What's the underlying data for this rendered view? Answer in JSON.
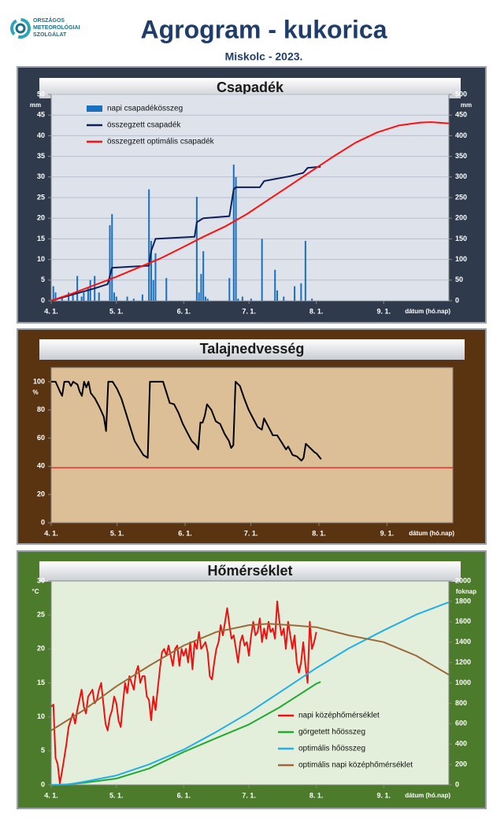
{
  "header": {
    "logo_text": [
      "ORSZÁGOS",
      "METEOROLÓGIAI",
      "SZOLGÁLAT"
    ],
    "title": "Agrogram - kukorica",
    "subtitle": "Miskolc - 2023."
  },
  "chart_data": [
    {
      "type": "combo",
      "title": "Csapadék",
      "y_unit": "mm",
      "y2_unit": "mm",
      "x_label": "dátum (hó.nap)",
      "panel_color": "#2f3b4d",
      "plot_color": "#dde2eb",
      "grid": true,
      "legend": "upper left",
      "xlim": [
        0,
        183
      ],
      "xticks": [
        {
          "value": 0,
          "label": "4. 1."
        },
        {
          "value": 30,
          "label": "5. 1."
        },
        {
          "value": 61,
          "label": "6. 1."
        },
        {
          "value": 91,
          "label": "7. 1."
        },
        {
          "value": 122,
          "label": "8. 1."
        },
        {
          "value": 153,
          "label": "9. 1."
        }
      ],
      "ylim": [
        0,
        50
      ],
      "yticks": [
        0,
        5,
        10,
        15,
        20,
        25,
        30,
        35,
        40,
        45,
        50
      ],
      "y2lim": [
        0,
        500
      ],
      "y2ticks": [
        0,
        50,
        100,
        150,
        200,
        250,
        300,
        350,
        400,
        450,
        500
      ],
      "series": [
        {
          "name": "napi csapadékösszeg",
          "type": "bar",
          "color": "#1a6fc0",
          "x": [
            1,
            2,
            5,
            8,
            10,
            12,
            14,
            15,
            17,
            18,
            20,
            22,
            27,
            28,
            29,
            30,
            35,
            38,
            42,
            45,
            46,
            47,
            48,
            53,
            67,
            68,
            69,
            70,
            71,
            72,
            82,
            84,
            85,
            86,
            88,
            92,
            97,
            103,
            104,
            107,
            112,
            115,
            117,
            120
          ],
          "values": [
            3.5,
            2,
            1,
            2,
            1.5,
            6,
            1,
            2,
            3,
            5,
            6,
            2,
            18.3,
            21,
            2,
            1,
            1,
            0.5,
            1.5,
            27,
            14.5,
            5,
            11.5,
            5.5,
            25.2,
            2,
            6.5,
            12,
            1,
            0.5,
            5.5,
            33,
            30,
            0.5,
            1,
            0.5,
            15,
            7.5,
            2.5,
            1,
            3.5,
            4.2,
            14.5,
            0.5
          ]
        },
        {
          "name": "összegzett csapadék",
          "type": "line",
          "axis": "y2",
          "color": "#0f1f5c",
          "x": [
            0,
            10,
            20,
            26,
            28,
            45,
            46,
            48,
            66,
            67,
            70,
            82,
            84,
            85,
            96,
            98,
            103,
            110,
            116,
            118,
            124
          ],
          "values": [
            0,
            15,
            30,
            40,
            80,
            85,
            120,
            150,
            155,
            190,
            200,
            205,
            270,
            275,
            275,
            290,
            295,
            302,
            310,
            322,
            325
          ]
        },
        {
          "name": "összegzett optimális  csapadék",
          "type": "line",
          "axis": "y2",
          "color": "#ff1010",
          "x": [
            0,
            10,
            20,
            30,
            40,
            50,
            60,
            70,
            80,
            90,
            100,
            110,
            120,
            130,
            140,
            150,
            160,
            170,
            175,
            183
          ],
          "values": [
            0,
            18,
            38,
            58,
            80,
            102,
            128,
            155,
            180,
            210,
            245,
            280,
            315,
            350,
            383,
            408,
            425,
            432,
            433,
            430
          ]
        }
      ]
    },
    {
      "type": "line",
      "title": "Talajnedvesség",
      "y_unit": "%",
      "x_label": "dátum (hó.nap)",
      "panel_color": "#5a3410",
      "plot_color": "#dcbf97",
      "grid": false,
      "xlim": [
        0,
        183
      ],
      "xticks": [
        {
          "value": 0,
          "label": "4. 1."
        },
        {
          "value": 30,
          "label": "5. 1."
        },
        {
          "value": 61,
          "label": "6. 1."
        },
        {
          "value": 91,
          "label": "7. 1."
        },
        {
          "value": 122,
          "label": "8. 1."
        },
        {
          "value": 153,
          "label": "9. 1."
        }
      ],
      "ylim": [
        0,
        110
      ],
      "yticks": [
        0,
        20,
        40,
        60,
        80,
        100
      ],
      "reference_line": {
        "value": 39,
        "color": "#e01818"
      },
      "series": [
        {
          "type": "line",
          "color": "#000000",
          "x": [
            0,
            2,
            4,
            5,
            6,
            8,
            9,
            10,
            12,
            13,
            14,
            15,
            16,
            17,
            18,
            20,
            22,
            24,
            25,
            26,
            28,
            30,
            32,
            34,
            36,
            38,
            40,
            42,
            44,
            45,
            50,
            51,
            53,
            54,
            56,
            58,
            60,
            62,
            64,
            66,
            67,
            68,
            69,
            70,
            71,
            73,
            75,
            77,
            79,
            81,
            82,
            83,
            84,
            86,
            88,
            90,
            92,
            94,
            96,
            97,
            99,
            101,
            103,
            105,
            107,
            108,
            110,
            112,
            114,
            115,
            116,
            118,
            120,
            121,
            123
          ],
          "values": [
            100,
            100,
            93,
            90,
            100,
            100,
            97,
            100,
            98,
            93,
            90,
            100,
            96,
            100,
            92,
            88,
            82,
            75,
            65,
            100,
            100,
            95,
            88,
            78,
            68,
            58,
            53,
            48,
            46,
            100,
            100,
            100,
            90,
            85,
            84,
            78,
            70,
            64,
            58,
            55,
            52,
            71,
            71,
            76,
            84,
            80,
            72,
            70,
            63,
            58,
            53,
            55,
            100,
            97,
            88,
            80,
            74,
            68,
            66,
            74,
            68,
            62,
            62,
            57,
            52,
            54,
            48,
            47,
            44,
            46,
            56,
            53,
            50,
            49,
            45
          ]
        }
      ]
    },
    {
      "type": "line",
      "title": "Hőmérséklet",
      "y_unit": "°C",
      "y2_unit": "foknap",
      "x_label": "dátum (hó.nap)",
      "panel_color": "#4b7b2b",
      "plot_color": "#e3efda",
      "grid": false,
      "legend": "lower right",
      "xlim": [
        0,
        183
      ],
      "xticks": [
        {
          "value": 0,
          "label": "4. 1."
        },
        {
          "value": 30,
          "label": "5. 1."
        },
        {
          "value": 61,
          "label": "6. 1."
        },
        {
          "value": 91,
          "label": "7. 1."
        },
        {
          "value": 122,
          "label": "8. 1."
        },
        {
          "value": 153,
          "label": "9. 1."
        }
      ],
      "ylim": [
        0,
        30
      ],
      "yticks": [
        0,
        5,
        10,
        15,
        20,
        25,
        30
      ],
      "y2lim": [
        0,
        2000
      ],
      "y2ticks": [
        0,
        200,
        400,
        600,
        800,
        1000,
        1200,
        1400,
        1600,
        1800,
        2000
      ],
      "series": [
        {
          "name": "napi középhőmérséklet",
          "type": "line",
          "color": "#ee1111",
          "x": [
            0,
            1,
            2,
            3,
            4,
            5,
            6,
            7,
            8,
            9,
            10,
            11,
            12,
            13,
            14,
            15,
            16,
            17,
            18,
            19,
            20,
            21,
            22,
            23,
            24,
            25,
            26,
            27,
            28,
            29,
            30,
            31,
            32,
            33,
            34,
            35,
            36,
            37,
            38,
            39,
            40,
            41,
            42,
            43,
            44,
            45,
            46,
            47,
            48,
            49,
            50,
            51,
            52,
            53,
            54,
            55,
            56,
            57,
            58,
            59,
            60,
            61,
            62,
            63,
            64,
            65,
            66,
            67,
            68,
            69,
            70,
            71,
            72,
            73,
            74,
            75,
            76,
            77,
            78,
            79,
            80,
            81,
            82,
            83,
            84,
            85,
            86,
            87,
            88,
            89,
            90,
            91,
            92,
            93,
            94,
            95,
            96,
            97,
            98,
            99,
            100,
            101,
            102,
            103,
            104,
            105,
            106,
            107,
            108,
            109,
            110,
            111,
            112,
            113,
            114,
            115,
            116,
            117,
            118,
            119,
            120,
            121,
            122
          ],
          "values": [
            11.5,
            11.8,
            4,
            3,
            0.2,
            2,
            4,
            6,
            8.5,
            9.5,
            10.5,
            9,
            11,
            12.5,
            14,
            11.5,
            10.5,
            13,
            13.5,
            14,
            12,
            12.5,
            14,
            15,
            12,
            9,
            8,
            10,
            11,
            13,
            12,
            9.5,
            8.5,
            12,
            15,
            13.5,
            16,
            15,
            14,
            16.5,
            17.5,
            15,
            16,
            16,
            13,
            12.5,
            9.5,
            13,
            11,
            14,
            17,
            19.5,
            20,
            19,
            20.5,
            19,
            17.5,
            20,
            20.5,
            17.5,
            20,
            19,
            20,
            18,
            21,
            17,
            21,
            20,
            22.5,
            20,
            20.5,
            21,
            19.5,
            16,
            15.5,
            18,
            20,
            21,
            23.5,
            22,
            24,
            26,
            23.5,
            21.5,
            22,
            20,
            18,
            21,
            22,
            20.5,
            21,
            19,
            22,
            24,
            22,
            22.5,
            24.5,
            21,
            23,
            21.5,
            24,
            22.5,
            23,
            21.5,
            27,
            24,
            22,
            23,
            20,
            24,
            22,
            20,
            22,
            18,
            16.5,
            18,
            21,
            17.5,
            15,
            24,
            20,
            21,
            22.5
          ]
        },
        {
          "name": "görgetett hőösszeg",
          "type": "line",
          "axis": "y2",
          "color": "#22aa33",
          "x": [
            5,
            15,
            30,
            45,
            61,
            75,
            91,
            105,
            122,
            124
          ],
          "values": [
            0,
            20,
            62,
            160,
            323,
            450,
            592,
            760,
            992,
            1010
          ]
        },
        {
          "name": "optimális hőösszeg",
          "type": "line",
          "axis": "y2",
          "color": "#22aee8",
          "x": [
            0,
            8,
            15,
            30,
            45,
            61,
            76,
            91,
            106,
            122,
            137,
            153,
            168,
            183
          ],
          "values": [
            0,
            5,
            30,
            92,
            200,
            346,
            520,
            708,
            920,
            1146,
            1340,
            1515,
            1670,
            1792
          ]
        },
        {
          "name": "optimális napi középhőmérséklet",
          "type": "line",
          "color": "#9b6a3a",
          "x": [
            0,
            15,
            30,
            45,
            61,
            76,
            91,
            100,
            110,
            122,
            137,
            153,
            168,
            183
          ],
          "values": [
            8,
            11,
            14.5,
            17.5,
            20.5,
            22.5,
            23.5,
            23.7,
            23.5,
            23.2,
            22,
            21,
            19,
            16.2
          ]
        }
      ]
    }
  ]
}
